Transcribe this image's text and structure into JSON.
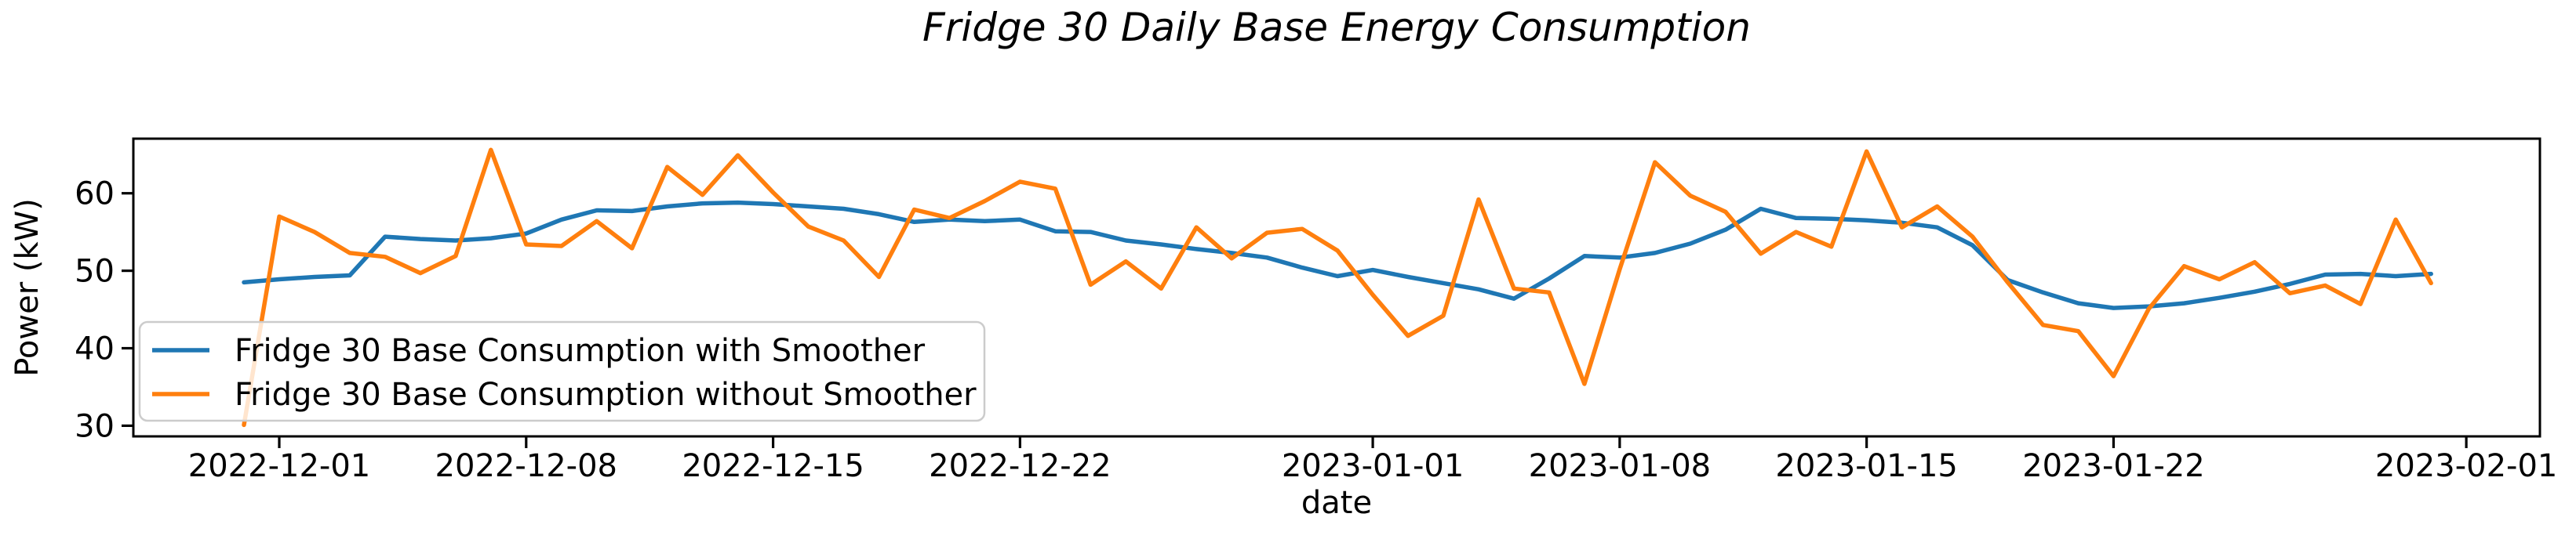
{
  "chart_data": {
    "type": "line",
    "title": "Fridge 30 Daily Base Energy Consumption",
    "xlabel": "date",
    "ylabel": "Power (kW)",
    "x_tick_labels": [
      "2022-12-01",
      "2022-12-08",
      "2022-12-15",
      "2022-12-22",
      "2023-01-01",
      "2023-01-08",
      "2023-01-15",
      "2023-01-22",
      "2023-02-01"
    ],
    "y_tick_values": [
      30,
      40,
      50,
      60
    ],
    "ylim": [
      28.6,
      67.0
    ],
    "xlim": [
      "2022-11-27",
      "2023-02-03"
    ],
    "grid": false,
    "legend_position": "lower left",
    "frame_color": "#000000",
    "x": [
      "2022-11-30",
      "2022-12-01",
      "2022-12-02",
      "2022-12-03",
      "2022-12-04",
      "2022-12-05",
      "2022-12-06",
      "2022-12-07",
      "2022-12-08",
      "2022-12-09",
      "2022-12-10",
      "2022-12-11",
      "2022-12-12",
      "2022-12-13",
      "2022-12-14",
      "2022-12-15",
      "2022-12-16",
      "2022-12-17",
      "2022-12-18",
      "2022-12-19",
      "2022-12-20",
      "2022-12-21",
      "2022-12-22",
      "2022-12-23",
      "2022-12-24",
      "2022-12-25",
      "2022-12-26",
      "2022-12-27",
      "2022-12-28",
      "2022-12-29",
      "2022-12-30",
      "2022-12-31",
      "2023-01-01",
      "2023-01-02",
      "2023-01-03",
      "2023-01-04",
      "2023-01-05",
      "2023-01-06",
      "2023-01-07",
      "2023-01-08",
      "2023-01-09",
      "2023-01-10",
      "2023-01-11",
      "2023-01-12",
      "2023-01-13",
      "2023-01-14",
      "2023-01-15",
      "2023-01-16",
      "2023-01-17",
      "2023-01-18",
      "2023-01-19",
      "2023-01-20",
      "2023-01-21",
      "2023-01-22",
      "2023-01-23",
      "2023-01-24",
      "2023-01-25",
      "2023-01-26",
      "2023-01-27",
      "2023-01-28",
      "2023-01-29",
      "2023-01-30",
      "2023-01-31"
    ],
    "series": [
      {
        "name": "Fridge 30 Base Consumption with Smoother",
        "color": "#1f77b4",
        "values": [
          48.5,
          48.9,
          49.2,
          49.4,
          54.4,
          54.1,
          53.9,
          54.2,
          54.8,
          56.6,
          57.8,
          57.7,
          58.3,
          58.7,
          58.8,
          58.6,
          58.3,
          58.0,
          57.3,
          56.3,
          56.6,
          56.4,
          56.6,
          55.1,
          55.0,
          53.9,
          53.4,
          52.8,
          52.3,
          51.7,
          50.4,
          49.3,
          50.1,
          49.2,
          48.4,
          47.6,
          46.4,
          49.0,
          51.9,
          51.7,
          52.3,
          53.5,
          55.3,
          58.0,
          56.8,
          56.7,
          56.5,
          56.2,
          55.6,
          53.3,
          48.8,
          47.2,
          45.8,
          45.2,
          45.4,
          45.8,
          46.5,
          47.3,
          48.3,
          49.5,
          49.6,
          49.3,
          49.6
        ]
      },
      {
        "name": "Fridge 30 Base Consumption without Smoother",
        "color": "#ff7f0e",
        "values": [
          30.1,
          57.0,
          55.0,
          52.3,
          51.8,
          49.7,
          51.9,
          65.6,
          53.4,
          53.2,
          56.4,
          52.9,
          63.4,
          59.8,
          64.9,
          60.1,
          55.7,
          53.9,
          49.2,
          57.9,
          56.8,
          59.0,
          61.5,
          60.6,
          48.2,
          51.2,
          47.7,
          55.6,
          51.6,
          54.9,
          55.4,
          52.6,
          46.9,
          41.6,
          44.2,
          59.2,
          47.7,
          47.2,
          35.4,
          50.2,
          64.0,
          59.7,
          57.6,
          52.2,
          55.0,
          53.1,
          65.4,
          55.6,
          58.3,
          54.4,
          48.5,
          43.0,
          42.2,
          36.4,
          45.1,
          50.6,
          48.9,
          51.1,
          47.1,
          48.1,
          45.7,
          56.6,
          48.4
        ]
      }
    ]
  }
}
